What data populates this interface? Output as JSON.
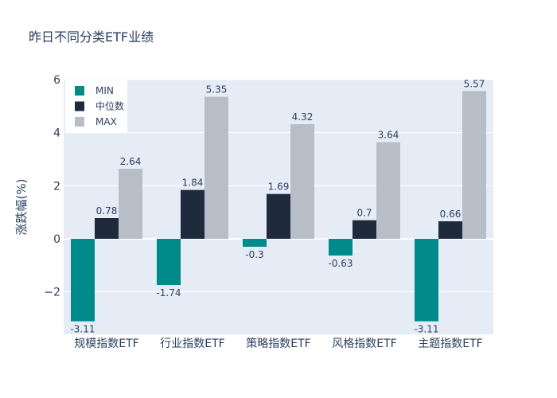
{
  "chart_data": {
    "type": "bar",
    "title": "昨日不同分类ETF业绩",
    "xlabel": "",
    "ylabel": "涨跌幅(%)",
    "categories": [
      "规模指数ETF",
      "行业指数ETF",
      "策略指数ETF",
      "风格指数ETF",
      "主题指数ETF"
    ],
    "series": [
      {
        "name": "MIN",
        "color": "#008b8b",
        "values": [
          -3.11,
          -1.74,
          -0.3,
          -0.63,
          -3.11
        ]
      },
      {
        "name": "中位数",
        "color": "#1f2a3d",
        "values": [
          0.78,
          1.84,
          1.69,
          0.7,
          0.66
        ]
      },
      {
        "name": "MAX",
        "color": "#b8bec7",
        "values": [
          2.64,
          5.35,
          4.32,
          3.64,
          5.57
        ]
      }
    ],
    "ylim": [
      -3.6,
      6.0
    ],
    "yticks": [
      -2,
      0,
      2,
      4,
      6
    ],
    "ytick_labels": [
      "−2",
      "0",
      "2",
      "4",
      "6"
    ],
    "grid": true,
    "legend_position": "top-left",
    "plot_bg": "#e5ecf6"
  }
}
